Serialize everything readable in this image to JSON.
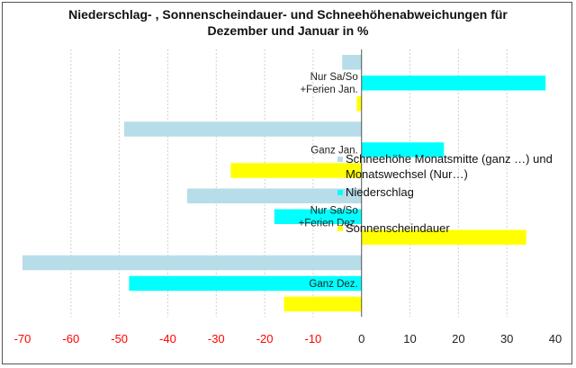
{
  "chart_data": {
    "type": "bar",
    "orientation": "horizontal",
    "title_lines": [
      "Niederschlag- , Sonnenscheindauer- und Schneehöhenabweichungen für",
      "Dezember und Januar in %"
    ],
    "categories": [
      {
        "lines": [
          "Ganz Dez."
        ]
      },
      {
        "lines": [
          "Nur Sa/So",
          "+Ferien Dez."
        ]
      },
      {
        "lines": [
          "Ganz Jan."
        ]
      },
      {
        "lines": [
          "Nur Sa/So",
          "+Ferien Jan."
        ]
      }
    ],
    "series": [
      {
        "name_lines": [
          "Schneehöhe Monatsmitte (ganz …) und",
          "Monatswechsel (Nur…)"
        ],
        "color": "#b7dde8",
        "values": [
          -70,
          -36,
          -49,
          -4
        ]
      },
      {
        "name_lines": [
          "Niederschlag"
        ],
        "color": "#00ffff",
        "values": [
          -48,
          -18,
          17,
          38
        ]
      },
      {
        "name_lines": [
          "Sonnenscheindauer"
        ],
        "color": "#ffff00",
        "values": [
          -16,
          34,
          -27,
          -1
        ]
      }
    ],
    "xlim": [
      -70,
      40
    ],
    "xticks": [
      "-70",
      "-60",
      "-50",
      "-40",
      "-30",
      "-20",
      "-10",
      "0",
      "10",
      "20",
      "30",
      "40"
    ],
    "negative_tick_color": "#ff0000",
    "positive_tick_color": "#222222",
    "grid": "vertical dashed",
    "legend": "center (overlapping plot)"
  }
}
